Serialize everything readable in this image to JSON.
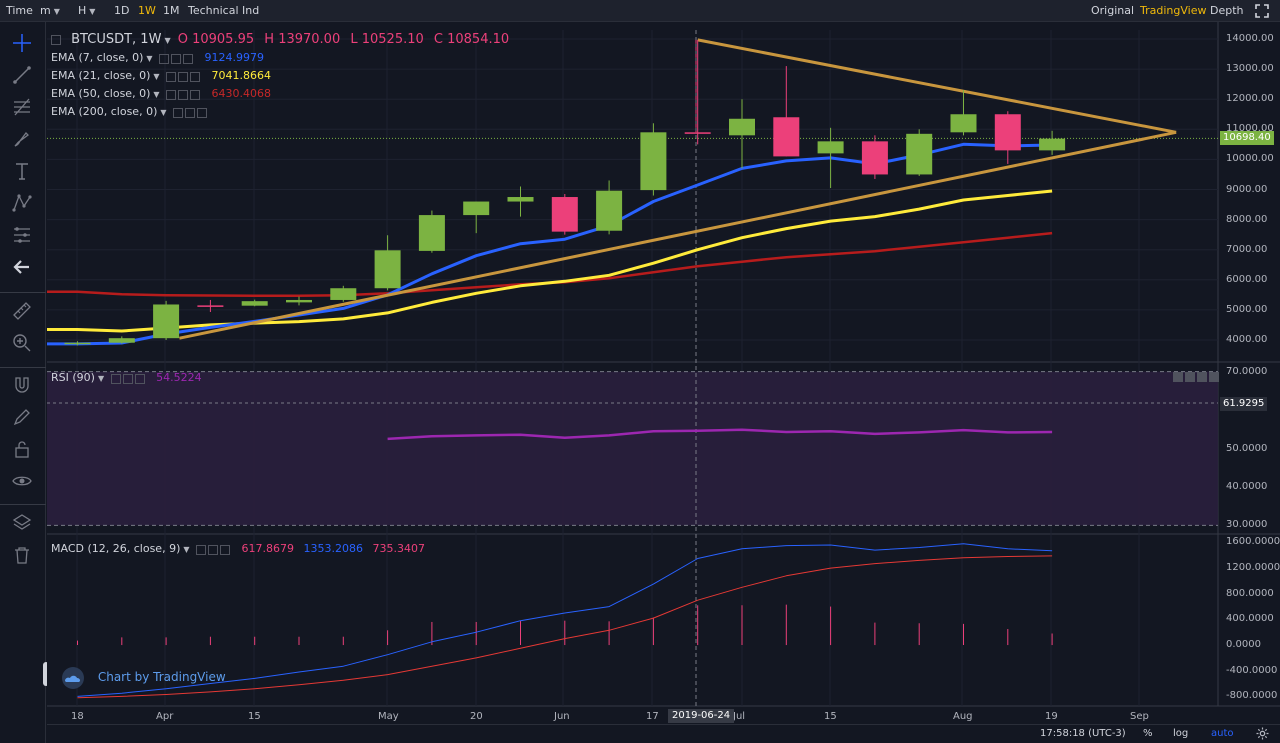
{
  "toolbar": {
    "time_label": "Time",
    "minute_label": "m",
    "hour_label": "H",
    "d1_label": "1D",
    "w1_label": "1W",
    "m1_label": "1M",
    "indicators_label": "Technical Ind",
    "original_label": "Original",
    "tradingview_label": "TradingView",
    "depth_label": "Depth"
  },
  "legend": {
    "symbol": "BTCUSDT, 1W",
    "open": "O 10905.95",
    "high": "H 13970.00",
    "low": "L 10525.10",
    "close": "C 10854.10",
    "ema7_name": "EMA (7, close, 0)",
    "ema7_value": "9124.9979",
    "ema21_name": "EMA (21, close, 0)",
    "ema21_value": "7041.8664",
    "ema50_name": "EMA (50, close, 0)",
    "ema50_value": "6430.4068",
    "ema200_name": "EMA (200, close, 0)",
    "rsi_name": "RSI (90)",
    "rsi_value": "54.5224",
    "macd_name": "MACD (12, 26, close, 9)",
    "macd_v1": "617.8679",
    "macd_v2": "1353.2086",
    "macd_v3": "735.3407"
  },
  "price_axis": [
    "14000.00",
    "13000.00",
    "12000.00",
    "11000.00",
    "10000.00",
    "9000.00",
    "8000.00",
    "7000.00",
    "6000.00",
    "5000.00",
    "4000.00"
  ],
  "current_price_label": "10698.40",
  "rsi_axis": [
    "70.0000",
    "50.0000",
    "40.0000",
    "30.0000"
  ],
  "rsi_marker_label": "61.9295",
  "macd_axis": [
    "1600.0000",
    "1200.0000",
    "800.0000",
    "400.0000",
    "0.0000",
    "-400.0000",
    "-800.0000"
  ],
  "time_axis": [
    "18",
    "Apr",
    "15",
    "May",
    "20",
    "Jun",
    "17",
    "Jul",
    "15",
    "Aug",
    "19",
    "Sep"
  ],
  "crosshair_date": "2019-06-24",
  "bottom": {
    "clock": "17:58:18 (UTC-3)",
    "percent": "%",
    "log": "log",
    "auto": "auto"
  },
  "badge_text": "Chart by TradingView",
  "colors": {
    "up": "#7cb342",
    "down": "#ec407a",
    "ema7": "#2962ff",
    "ema21": "#ffeb3b",
    "ema50": "#b71c1c",
    "triangle": "#c8963e",
    "rsi": "#9c27b0",
    "macd": "#2962ff",
    "signal": "#e53935"
  },
  "chart_data": {
    "type": "candlestick",
    "price_range": [
      3500,
      14500
    ],
    "candles": [
      {
        "o": 3870,
        "h": 3960,
        "l": 3820,
        "c": 3910
      },
      {
        "o": 3910,
        "h": 4120,
        "l": 3880,
        "c": 4060
      },
      {
        "o": 4060,
        "h": 5300,
        "l": 4000,
        "c": 5180
      },
      {
        "o": 5150,
        "h": 5330,
        "l": 4930,
        "c": 5130
      },
      {
        "o": 5140,
        "h": 5340,
        "l": 5120,
        "c": 5290
      },
      {
        "o": 5250,
        "h": 5440,
        "l": 5150,
        "c": 5330
      },
      {
        "o": 5330,
        "h": 5800,
        "l": 5270,
        "c": 5720
      },
      {
        "o": 5720,
        "h": 7480,
        "l": 5650,
        "c": 6980
      },
      {
        "o": 6960,
        "h": 8300,
        "l": 6900,
        "c": 8150
      },
      {
        "o": 8150,
        "h": 8600,
        "l": 7550,
        "c": 8600
      },
      {
        "o": 8600,
        "h": 9100,
        "l": 8100,
        "c": 8750
      },
      {
        "o": 8750,
        "h": 8850,
        "l": 7500,
        "c": 7600
      },
      {
        "o": 7630,
        "h": 9300,
        "l": 7510,
        "c": 8960
      },
      {
        "o": 8980,
        "h": 11200,
        "l": 8800,
        "c": 10900
      },
      {
        "o": 10900,
        "h": 13970,
        "l": 10500,
        "c": 10850
      },
      {
        "o": 10800,
        "h": 12000,
        "l": 9700,
        "c": 11350
      },
      {
        "o": 11400,
        "h": 13100,
        "l": 10100,
        "c": 10100
      },
      {
        "o": 10200,
        "h": 11050,
        "l": 9050,
        "c": 10600
      },
      {
        "o": 10600,
        "h": 10800,
        "l": 9350,
        "c": 9500
      },
      {
        "o": 9500,
        "h": 11000,
        "l": 9450,
        "c": 10850
      },
      {
        "o": 10900,
        "h": 12300,
        "l": 10800,
        "c": 11500
      },
      {
        "o": 11500,
        "h": 11600,
        "l": 9850,
        "c": 10300
      },
      {
        "o": 10300,
        "h": 10950,
        "l": 10150,
        "c": 10690
      }
    ],
    "ema7": [
      3870,
      3900,
      4200,
      4420,
      4620,
      4830,
      5050,
      5500,
      6200,
      6800,
      7200,
      7350,
      7800,
      8600,
      9150,
      9700,
      9950,
      10050,
      9850,
      10150,
      10500,
      10450,
      10480
    ],
    "ema21": [
      4350,
      4300,
      4400,
      4500,
      4560,
      4610,
      4700,
      4900,
      5250,
      5550,
      5800,
      5950,
      6150,
      6550,
      7000,
      7400,
      7700,
      7950,
      8100,
      8350,
      8650,
      8800,
      8950
    ],
    "ema50": [
      5600,
      5520,
      5490,
      5480,
      5470,
      5470,
      5490,
      5550,
      5650,
      5750,
      5850,
      5920,
      6050,
      6250,
      6450,
      6600,
      6750,
      6850,
      6950,
      7100,
      7250,
      7400,
      7550
    ],
    "rsi": [
      null,
      null,
      null,
      null,
      null,
      null,
      null,
      52.5,
      53.2,
      53.4,
      53.6,
      52.8,
      53.4,
      54.5,
      54.6,
      54.9,
      54.3,
      54.5,
      53.8,
      54.2,
      54.8,
      54.2,
      54.3
    ],
    "rsi_range": [
      28,
      72
    ],
    "macd": [
      -800,
      -750,
      -680,
      -600,
      -520,
      -420,
      -330,
      -150,
      50,
      200,
      380,
      500,
      600,
      950,
      1350,
      1500,
      1550,
      1560,
      1480,
      1520,
      1580,
      1500,
      1470
    ],
    "signal": [
      -820,
      -800,
      -770,
      -730,
      -680,
      -620,
      -550,
      -460,
      -330,
      -200,
      -50,
      100,
      230,
      420,
      700,
      900,
      1080,
      1200,
      1270,
      1320,
      1360,
      1380,
      1390
    ],
    "hist": [
      70,
      120,
      120,
      130,
      130,
      130,
      130,
      230,
      360,
      360,
      380,
      380,
      370,
      430,
      620,
      620,
      630,
      600,
      350,
      340,
      330,
      250,
      180
    ],
    "macd_range": [
      -950,
      1700
    ],
    "triangle": {
      "upper_start": [
        14,
        13970
      ],
      "upper_end": [
        24.8,
        10900
      ],
      "lower_start": [
        2.3,
        4060
      ],
      "lower_end": [
        24.8,
        10900
      ]
    }
  }
}
